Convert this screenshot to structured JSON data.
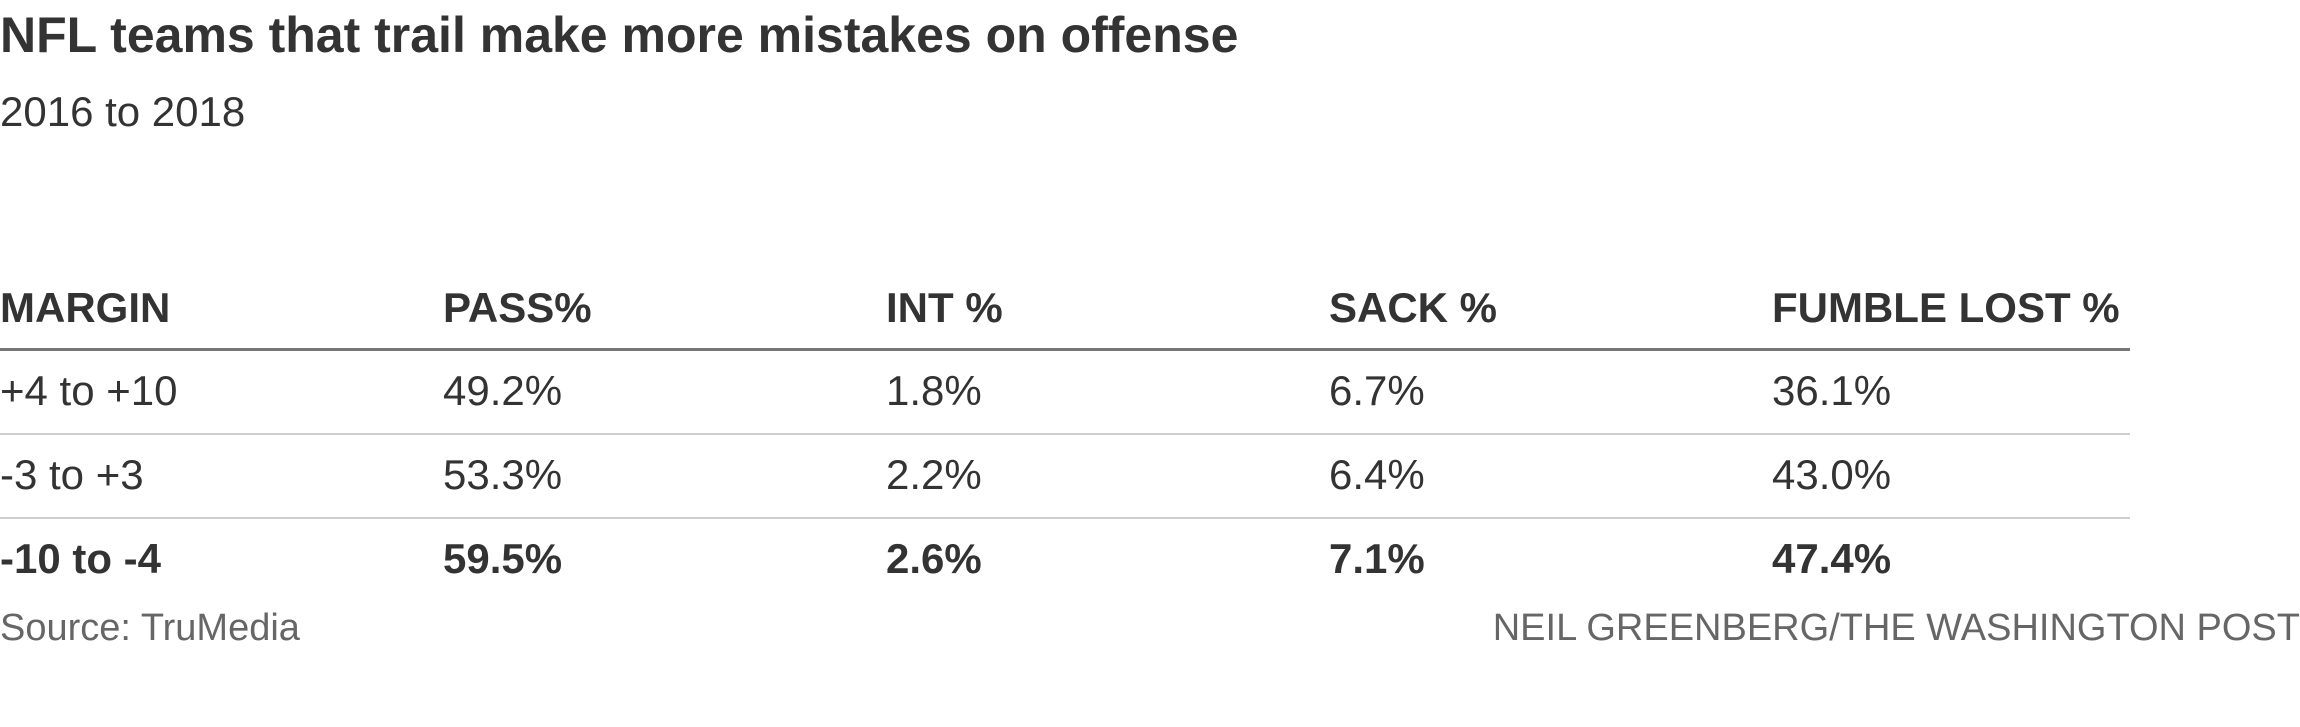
{
  "title": "NFL teams that trail make more mistakes on offense",
  "subtitle": "2016 to 2018",
  "source": "Source: TruMedia",
  "credit": "NEIL GREENBERG/THE WASHINGTON POST",
  "chart_data": {
    "type": "table",
    "columns": [
      "MARGIN",
      "PASS%",
      "INT %",
      "SACK %",
      "FUMBLE LOST %"
    ],
    "rows": [
      [
        "+4 to +10",
        "49.2%",
        "1.8%",
        "6.7%",
        "36.1%"
      ],
      [
        "-3 to +3",
        "53.3%",
        "2.2%",
        "6.4%",
        "43.0%"
      ],
      [
        "-10 to -4",
        "59.5%",
        "2.6%",
        "7.1%",
        "47.4%"
      ]
    ],
    "highlighted_row": 2,
    "colors": {
      "text": "#333333",
      "muted": "#666666",
      "header_rule": "#777777",
      "row_rule": "#cfcfcf"
    }
  }
}
